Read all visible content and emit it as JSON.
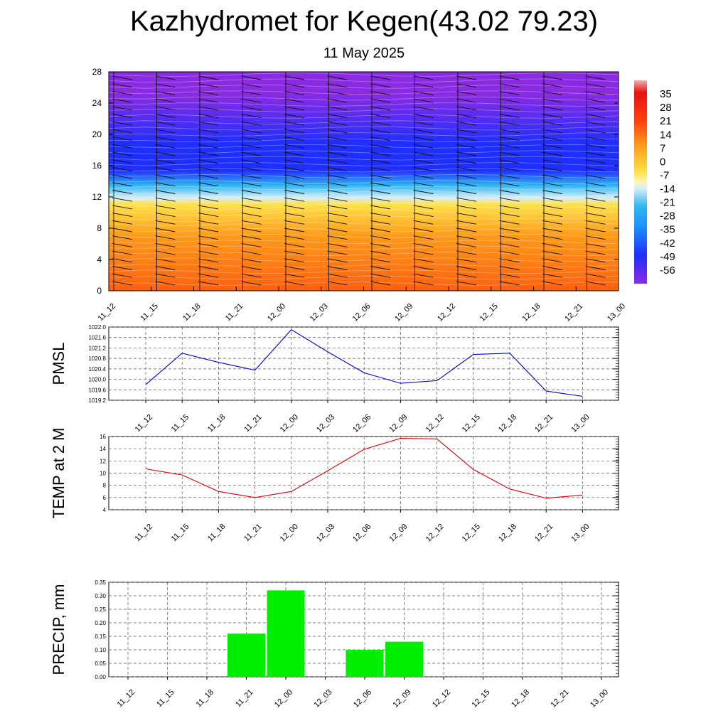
{
  "title": "Kazhydromet for Kegen(43.02 79.23)",
  "subtitle": "11 May 2025",
  "time_labels": [
    "11_12",
    "11_15",
    "11_18",
    "11_21",
    "12_00",
    "12_03",
    "12_06",
    "12_09",
    "12_12",
    "12_15",
    "12_18",
    "12_21",
    "13_00"
  ],
  "chart_data": [
    {
      "type": "heatmap",
      "name": "temperature-altitude cross-section",
      "x": [
        "11_12",
        "11_15",
        "11_18",
        "11_21",
        "12_00",
        "12_03",
        "12_06",
        "12_09",
        "12_12",
        "12_15",
        "12_18",
        "12_21",
        "13_00"
      ],
      "y_ticks": [
        "0",
        "4",
        "8",
        "12",
        "16",
        "20",
        "24",
        "28"
      ],
      "ylim": [
        0,
        28
      ],
      "colorbar": {
        "labels": [
          "35",
          "28",
          "21",
          "14",
          "7",
          "0",
          "-7",
          "-14",
          "-21",
          "-28",
          "-35",
          "-42",
          "-49",
          "-56"
        ],
        "range": [
          -63,
          42
        ]
      },
      "colors": {
        "deep_violet": "#8a2be2",
        "blue": "#1e2fff",
        "cyan": "#2fb8f0",
        "pale": "#d8eefa",
        "yellow": "#ffe24a",
        "orange": "#ff9a1a",
        "red_orange": "#ff6010"
      }
    },
    {
      "type": "line",
      "ylabel": "PMSL",
      "x": [
        "11_12",
        "11_15",
        "11_18",
        "11_21",
        "12_00",
        "12_03",
        "12_06",
        "12_09",
        "12_12",
        "12_15",
        "12_18",
        "12_21",
        "13_00"
      ],
      "series": [
        {
          "values": [
            1019.8,
            1021.0,
            1020.65,
            1020.35,
            1021.9,
            1021.05,
            1020.25,
            1019.85,
            1019.95,
            1020.95,
            1021.0,
            1019.55,
            1019.35
          ]
        }
      ],
      "y_ticks": [
        "1019.2",
        "1019.6",
        "1020.0",
        "1020.4",
        "1020.8",
        "1021.2",
        "1021.6",
        "1022.0"
      ],
      "ylim": [
        1019.2,
        1022.0
      ],
      "color": "#0000cc",
      "grid": true
    },
    {
      "type": "line",
      "ylabel": "TEMP at 2 M",
      "x": [
        "11_12",
        "11_15",
        "11_18",
        "11_21",
        "12_00",
        "12_03",
        "12_06",
        "12_09",
        "12_12",
        "12_15",
        "12_18",
        "12_21",
        "13_00"
      ],
      "series": [
        {
          "values": [
            10.7,
            9.7,
            7.0,
            6.0,
            7.0,
            10.4,
            13.9,
            15.7,
            15.6,
            10.6,
            7.4,
            5.9,
            6.4
          ]
        }
      ],
      "y_ticks": [
        "4",
        "6",
        "8",
        "10",
        "12",
        "14",
        "16"
      ],
      "ylim": [
        4,
        16
      ],
      "color": "#dd0000",
      "grid": true
    },
    {
      "type": "bar",
      "ylabel": "PRECIP, mm",
      "categories": [
        "11_12",
        "11_15",
        "11_18",
        "11_21",
        "12_00",
        "12_03",
        "12_06",
        "12_09",
        "12_12",
        "12_15",
        "12_18",
        "12_21",
        "13_00"
      ],
      "values": [
        0,
        0,
        0,
        0.16,
        0.32,
        0,
        0.1,
        0.13,
        0,
        0,
        0,
        0,
        0
      ],
      "y_ticks": [
        "0.00",
        "0.05",
        "0.10",
        "0.15",
        "0.20",
        "0.25",
        "0.30",
        "0.35"
      ],
      "ylim": [
        0,
        0.35
      ],
      "color": "#00ee00",
      "grid": true
    }
  ]
}
